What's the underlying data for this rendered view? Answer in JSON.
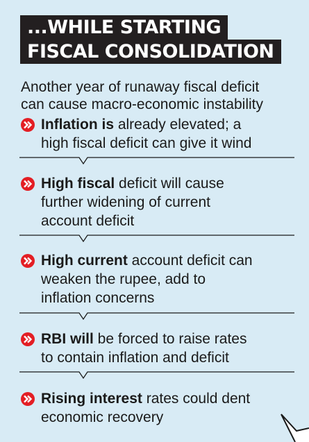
{
  "title": {
    "line1": "...WHILE STARTING",
    "line2": "FISCAL CONSOLIDATION"
  },
  "intro": {
    "line1": "Another year of runaway fiscal deficit",
    "line2": "can cause macro-economic instability"
  },
  "items": [
    {
      "bold": " Inflation is",
      "rest_line1": " already elevated; a",
      "lines": [
        "high fiscal deficit can give it wind"
      ]
    },
    {
      "bold": "High fiscal",
      "rest_line1": " deficit will cause",
      "lines": [
        "further widening of current",
        "account deficit"
      ]
    },
    {
      "bold": "High current",
      "rest_line1": " account deficit can",
      "lines": [
        "weaken the rupee, add to",
        "inflation concerns"
      ]
    },
    {
      "bold": "RBI will",
      "rest_line1": " be forced to raise rates",
      "lines": [
        "to contain inflation and deficit"
      ]
    },
    {
      "bold": "Rising interest",
      "rest_line1": " rates could dent",
      "lines": [
        "economic recovery"
      ]
    }
  ],
  "colors": {
    "background": "#d8ebf5",
    "title_bg": "#231f20",
    "bullet": "#e31e24",
    "text": "#1a1a1a"
  },
  "icons": {
    "bullet": "double-chevron-right-icon",
    "corner": "speech-bubble-tail-icon"
  }
}
